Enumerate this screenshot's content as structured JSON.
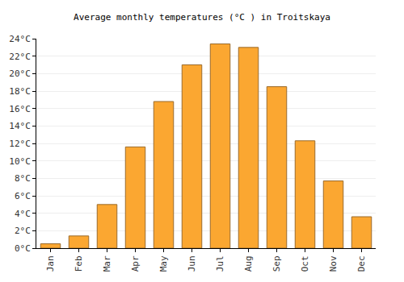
{
  "chart_data": {
    "type": "bar",
    "title": "Average monthly temperatures (°C ) in Troitskaya",
    "categories": [
      "Jan",
      "Feb",
      "Mar",
      "Apr",
      "May",
      "Jun",
      "Jul",
      "Aug",
      "Sep",
      "Oct",
      "Nov",
      "Dec"
    ],
    "values": [
      0.5,
      1.4,
      5.0,
      11.6,
      16.8,
      21.0,
      23.4,
      23.0,
      18.5,
      12.3,
      7.7,
      3.6
    ],
    "color": "#fba731",
    "ylim": [
      0,
      24
    ],
    "yticks": [
      {
        "value": 0,
        "label": "0°C"
      },
      {
        "value": 2,
        "label": "2°C"
      },
      {
        "value": 4,
        "label": "4°C"
      },
      {
        "value": 6,
        "label": "6°C"
      },
      {
        "value": 8,
        "label": "8°C"
      },
      {
        "value": 10,
        "label": "10°C"
      },
      {
        "value": 12,
        "label": "12°C"
      },
      {
        "value": 14,
        "label": "14°C"
      },
      {
        "value": 16,
        "label": "16°C"
      },
      {
        "value": 18,
        "label": "18°C"
      },
      {
        "value": 20,
        "label": "20°C"
      },
      {
        "value": 22,
        "label": "22°C"
      },
      {
        "value": 24,
        "label": "24°C"
      }
    ],
    "grid": true
  }
}
